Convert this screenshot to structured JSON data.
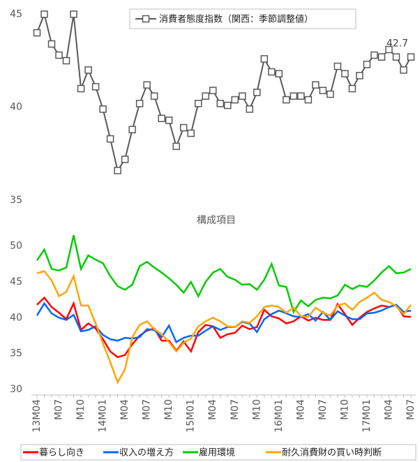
{
  "charts": [
    {
      "type": "line",
      "annotation": "42.7",
      "ylim": [
        35,
        45.5
      ],
      "yticks": [
        35,
        40,
        45
      ],
      "series": [
        {
          "name": "消費者態度指数（関西：季節調整値）",
          "color": "#595959",
          "values": [
            44.0,
            45.0,
            43.4,
            42.8,
            42.5,
            45.0,
            41.0,
            42.0,
            41.1,
            39.9,
            38.3,
            36.6,
            37.2,
            38.8,
            40.2,
            41.2,
            40.6,
            39.4,
            39.3,
            37.9,
            38.9,
            38.6,
            40.2,
            40.6,
            40.9,
            40.2,
            40.1,
            40.4,
            40.6,
            39.9,
            40.8,
            42.6,
            41.9,
            41.8,
            40.4,
            40.6,
            40.6,
            40.4,
            41.2,
            40.9,
            40.7,
            42.2,
            41.8,
            41.0,
            41.7,
            42.3,
            42.8,
            42.7,
            43.1,
            42.7,
            42.0,
            42.7
          ]
        }
      ]
    },
    {
      "type": "line",
      "title": "構成項目",
      "ylim": [
        30,
        52
      ],
      "yticks": [
        30,
        35,
        40,
        45,
        50
      ],
      "categories": [
        "13M04",
        null,
        null,
        "M07",
        null,
        null,
        "M10",
        null,
        null,
        "14M01",
        null,
        null,
        "M04",
        null,
        null,
        "M07",
        null,
        null,
        "M10",
        null,
        null,
        "15M01",
        null,
        null,
        "M04",
        null,
        null,
        "M07",
        null,
        null,
        "M10",
        null,
        null,
        "16M01",
        null,
        null,
        "M04",
        null,
        null,
        "M07",
        null,
        null,
        "M10",
        null,
        null,
        "17M01",
        null,
        null,
        "M04",
        null,
        null,
        "M07"
      ],
      "series": [
        {
          "name": "暮らし向き",
          "color": "#ff0000",
          "values": [
            41.8,
            42.8,
            41.5,
            40.7,
            39.8,
            42,
            38.3,
            39.2,
            38.5,
            37,
            35.3,
            34.5,
            34.8,
            36.3,
            37.5,
            38.2,
            38.5,
            36.8,
            36.8,
            35.4,
            36.7,
            35.3,
            38,
            39,
            38.8,
            37.2,
            37.7,
            37.9,
            38.9,
            38.4,
            38.7,
            41.1,
            40.2,
            39.9,
            39.2,
            39.5,
            40.2,
            39.6,
            40,
            39.7,
            39.7,
            41.9,
            40.5,
            39,
            40,
            40.8,
            41.3,
            41.7,
            41.5,
            41.8,
            40.2,
            40.1
          ]
        },
        {
          "name": "収入の増え方",
          "color": "#0066ff",
          "values": [
            40.3,
            42,
            40.6,
            40,
            39.7,
            40.4,
            38.1,
            38.3,
            38.8,
            37.6,
            37,
            36.8,
            37.2,
            37.1,
            37.3,
            38.4,
            38.3,
            37.3,
            38.9,
            36.6,
            37.2,
            37.5,
            37.5,
            38.2,
            38.8,
            38.3,
            38.7,
            38.7,
            39.4,
            39.2,
            38,
            39.8,
            40.5,
            41,
            40.6,
            40.2,
            40.1,
            40.5,
            39.6,
            40.8,
            39.7,
            40.9,
            40.3,
            39.8,
            39.8,
            40.6,
            40.7,
            41,
            41.5,
            41.8,
            40.8,
            41
          ]
        },
        {
          "name": "雇用環境",
          "color": "#00cc00",
          "values": [
            48,
            49.5,
            46.8,
            46.6,
            47,
            51.5,
            46.8,
            48.7,
            48.1,
            47.6,
            45.8,
            44.4,
            43.9,
            44.6,
            47.2,
            47.8,
            47,
            46.3,
            45.5,
            44.6,
            43.5,
            45,
            43,
            45,
            46.3,
            46.8,
            45.7,
            45.3,
            44.6,
            44.7,
            43.9,
            45.3,
            47.5,
            44.5,
            44.3,
            40.8,
            42.4,
            41.6,
            42.5,
            42.8,
            42.7,
            43.1,
            44.6,
            44,
            44.5,
            44.3,
            45.2,
            46.3,
            47.2,
            46.2,
            46.3,
            46.8
          ]
        },
        {
          "name": "耐久消費財の買い時判断",
          "color": "#ffa500",
          "values": [
            46.2,
            46.5,
            45.2,
            43,
            43.6,
            45.8,
            41.7,
            41.7,
            39.2,
            36.4,
            33.8,
            31,
            32.8,
            37.3,
            39,
            39.5,
            38.4,
            37.7,
            36.6,
            35.3,
            36.5,
            37.1,
            38.8,
            39.5,
            40,
            39.5,
            38.8,
            38.7,
            39.5,
            39.3,
            40.2,
            41.5,
            41.7,
            41.5,
            40.7,
            41.4,
            40.2,
            40.1,
            41.4,
            40.7,
            40.3,
            41.7,
            42,
            41.1,
            42.2,
            42.8,
            43.5,
            42.5,
            42.2,
            41.6,
            40.5,
            41.8
          ]
        }
      ]
    }
  ]
}
